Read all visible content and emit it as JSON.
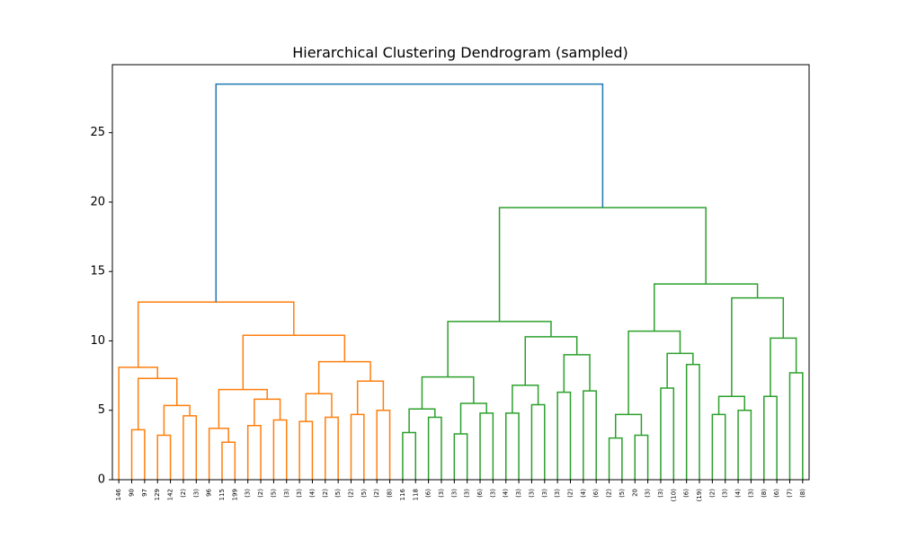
{
  "chart_data": {
    "type": "dendrogram",
    "title": "Hierarchical Clustering Dendrogram (sampled)",
    "leaves": [
      "146",
      "90",
      "97",
      "129",
      "142",
      "(2)",
      "(3)",
      "96",
      "115",
      "199",
      "(3)",
      "(2)",
      "(5)",
      "(3)",
      "(3)",
      "(4)",
      "(2)",
      "(5)",
      "(2)",
      "(5)",
      "(2)",
      "(8)",
      "116",
      "118",
      "(6)",
      "(3)",
      "(3)",
      "(3)",
      "(6)",
      "(3)",
      "(4)",
      "(3)",
      "(3)",
      "(3)",
      "(3)",
      "(2)",
      "(4)",
      "(6)",
      "(2)",
      "(5)",
      "20",
      "(3)",
      "(3)",
      "(10)",
      "(6)",
      "(19)",
      "(2)",
      "(3)",
      "(4)",
      "(3)",
      "(8)",
      "(6)",
      "(7)",
      "(8)"
    ],
    "links": [
      {
        "left": 1,
        "right": 2,
        "height": 3.6,
        "color": "#ff7f0e"
      },
      {
        "left": 3,
        "right": 4,
        "height": 3.2,
        "color": "#ff7f0e"
      },
      {
        "left": 5,
        "right": 6,
        "height": 4.6,
        "color": "#ff7f0e"
      },
      {
        "left": 55,
        "right": 56,
        "height": 5.35,
        "color": "#ff7f0e"
      },
      {
        "left": 54,
        "right": 57,
        "height": 7.3,
        "color": "#ff7f0e"
      },
      {
        "left": 0,
        "right": 58,
        "height": 8.1,
        "color": "#ff7f0e"
      },
      {
        "left": 8,
        "right": 9,
        "height": 2.7,
        "color": "#ff7f0e"
      },
      {
        "left": 7,
        "right": 60,
        "height": 3.7,
        "color": "#ff7f0e"
      },
      {
        "left": 10,
        "right": 11,
        "height": 3.9,
        "color": "#ff7f0e"
      },
      {
        "left": 12,
        "right": 13,
        "height": 4.3,
        "color": "#ff7f0e"
      },
      {
        "left": 62,
        "right": 63,
        "height": 5.8,
        "color": "#ff7f0e"
      },
      {
        "left": 61,
        "right": 64,
        "height": 6.5,
        "color": "#ff7f0e"
      },
      {
        "left": 14,
        "right": 15,
        "height": 4.2,
        "color": "#ff7f0e"
      },
      {
        "left": 16,
        "right": 17,
        "height": 4.5,
        "color": "#ff7f0e"
      },
      {
        "left": 66,
        "right": 67,
        "height": 6.2,
        "color": "#ff7f0e"
      },
      {
        "left": 18,
        "right": 19,
        "height": 4.7,
        "color": "#ff7f0e"
      },
      {
        "left": 20,
        "right": 21,
        "height": 5.0,
        "color": "#ff7f0e"
      },
      {
        "left": 69,
        "right": 70,
        "height": 7.1,
        "color": "#ff7f0e"
      },
      {
        "left": 68,
        "right": 71,
        "height": 8.5,
        "color": "#ff7f0e"
      },
      {
        "left": 65,
        "right": 72,
        "height": 10.4,
        "color": "#ff7f0e"
      },
      {
        "left": 59,
        "right": 73,
        "height": 12.8,
        "color": "#ff7f0e"
      },
      {
        "left": 22,
        "right": 23,
        "height": 3.4,
        "color": "#2ca02c"
      },
      {
        "left": 24,
        "right": 25,
        "height": 4.5,
        "color": "#2ca02c"
      },
      {
        "left": 75,
        "right": 76,
        "height": 5.1,
        "color": "#2ca02c"
      },
      {
        "left": 26,
        "right": 27,
        "height": 3.3,
        "color": "#2ca02c"
      },
      {
        "left": 28,
        "right": 29,
        "height": 4.8,
        "color": "#2ca02c"
      },
      {
        "left": 78,
        "right": 79,
        "height": 5.5,
        "color": "#2ca02c"
      },
      {
        "left": 77,
        "right": 80,
        "height": 7.4,
        "color": "#2ca02c"
      },
      {
        "left": 30,
        "right": 31,
        "height": 4.8,
        "color": "#2ca02c"
      },
      {
        "left": 32,
        "right": 33,
        "height": 5.4,
        "color": "#2ca02c"
      },
      {
        "left": 82,
        "right": 83,
        "height": 6.8,
        "color": "#2ca02c"
      },
      {
        "left": 34,
        "right": 35,
        "height": 6.3,
        "color": "#2ca02c"
      },
      {
        "left": 36,
        "right": 37,
        "height": 6.4,
        "color": "#2ca02c"
      },
      {
        "left": 85,
        "right": 86,
        "height": 9.0,
        "color": "#2ca02c"
      },
      {
        "left": 84,
        "right": 87,
        "height": 10.3,
        "color": "#2ca02c"
      },
      {
        "left": 81,
        "right": 88,
        "height": 11.4,
        "color": "#2ca02c"
      },
      {
        "left": 38,
        "right": 39,
        "height": 3.0,
        "color": "#2ca02c"
      },
      {
        "left": 40,
        "right": 41,
        "height": 3.2,
        "color": "#2ca02c"
      },
      {
        "left": 90,
        "right": 91,
        "height": 4.7,
        "color": "#2ca02c"
      },
      {
        "left": 42,
        "right": 43,
        "height": 6.6,
        "color": "#2ca02c"
      },
      {
        "left": 44,
        "right": 45,
        "height": 8.3,
        "color": "#2ca02c"
      },
      {
        "left": 93,
        "right": 94,
        "height": 9.1,
        "color": "#2ca02c"
      },
      {
        "left": 92,
        "right": 95,
        "height": 10.7,
        "color": "#2ca02c"
      },
      {
        "left": 46,
        "right": 47,
        "height": 4.7,
        "color": "#2ca02c"
      },
      {
        "left": 48,
        "right": 49,
        "height": 5.0,
        "color": "#2ca02c"
      },
      {
        "left": 97,
        "right": 98,
        "height": 6.0,
        "color": "#2ca02c"
      },
      {
        "left": 50,
        "right": 51,
        "height": 6.0,
        "color": "#2ca02c"
      },
      {
        "left": 52,
        "right": 53,
        "height": 7.7,
        "color": "#2ca02c"
      },
      {
        "left": 100,
        "right": 101,
        "height": 10.2,
        "color": "#2ca02c"
      },
      {
        "left": 99,
        "right": 102,
        "height": 13.1,
        "color": "#2ca02c"
      },
      {
        "left": 96,
        "right": 103,
        "height": 14.1,
        "color": "#2ca02c"
      },
      {
        "left": 89,
        "right": 104,
        "height": 19.6,
        "color": "#2ca02c"
      },
      {
        "left": 74,
        "right": 105,
        "height": 28.5,
        "color": "#1f77b4"
      }
    ],
    "ylim": [
      0,
      29.9
    ],
    "yticks": [
      0,
      5,
      10,
      15,
      20,
      25
    ]
  }
}
